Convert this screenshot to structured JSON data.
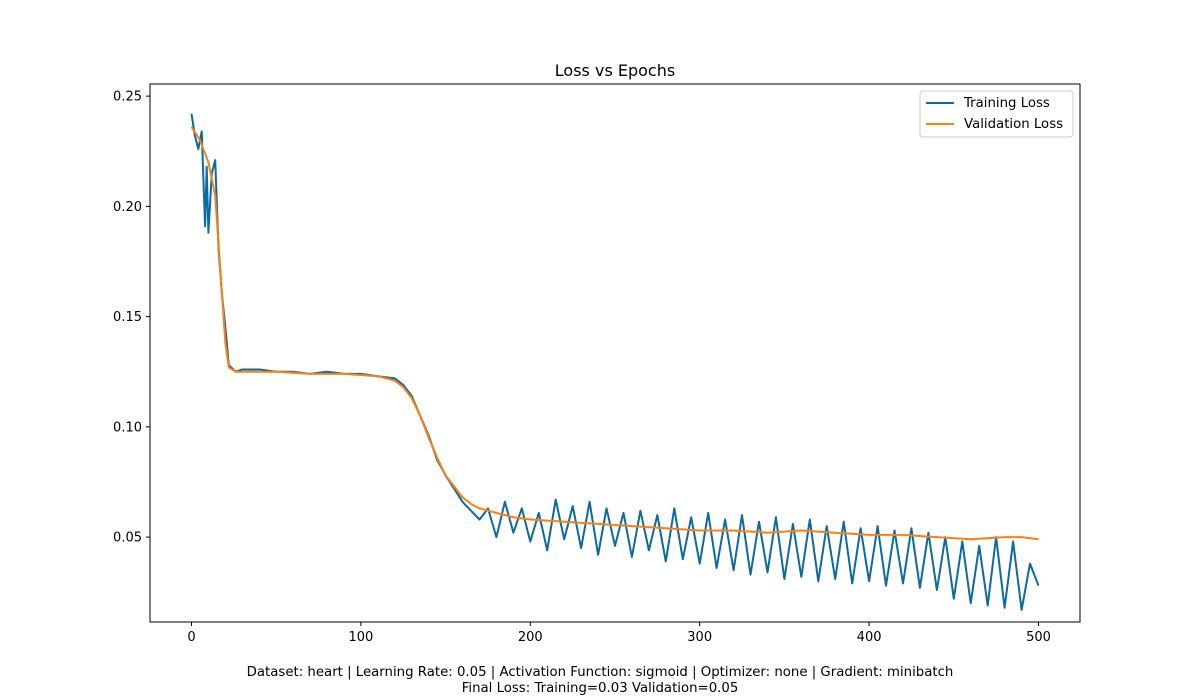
{
  "chart_data": {
    "type": "line",
    "title": "Loss vs Epochs",
    "xlabel": "",
    "ylabel": "",
    "xlim": [
      -24.5,
      524.5
    ],
    "ylim": [
      0.0115,
      0.2555
    ],
    "x_ticks": [
      0,
      100,
      200,
      300,
      400,
      500
    ],
    "y_ticks": [
      0.05,
      0.1,
      0.15,
      0.2,
      0.25
    ],
    "y_tick_labels": [
      "0.05",
      "0.10",
      "0.15",
      "0.20",
      "0.25"
    ],
    "grid": false,
    "legend_position": "top-right",
    "series": [
      {
        "name": "Training Loss",
        "color": "#0a6aa1",
        "x": [
          0,
          2,
          4,
          6,
          8,
          9,
          10,
          12,
          14,
          16,
          18,
          20,
          22,
          26,
          30,
          40,
          50,
          60,
          70,
          80,
          90,
          100,
          110,
          120,
          125,
          130,
          135,
          140,
          145,
          150,
          155,
          160,
          165,
          170,
          175,
          180,
          185,
          190,
          195,
          200,
          205,
          210,
          215,
          220,
          225,
          230,
          235,
          240,
          245,
          250,
          255,
          260,
          265,
          270,
          275,
          280,
          285,
          290,
          295,
          300,
          305,
          310,
          315,
          320,
          325,
          330,
          335,
          340,
          345,
          350,
          355,
          360,
          365,
          370,
          375,
          380,
          385,
          390,
          395,
          400,
          405,
          410,
          415,
          420,
          425,
          430,
          435,
          440,
          445,
          450,
          455,
          460,
          465,
          470,
          475,
          480,
          485,
          490,
          495,
          500
        ],
        "values": [
          0.242,
          0.232,
          0.226,
          0.234,
          0.191,
          0.218,
          0.188,
          0.215,
          0.221,
          0.18,
          0.16,
          0.145,
          0.128,
          0.125,
          0.126,
          0.126,
          0.125,
          0.125,
          0.124,
          0.125,
          0.124,
          0.124,
          0.123,
          0.122,
          0.119,
          0.114,
          0.105,
          0.096,
          0.085,
          0.078,
          0.072,
          0.066,
          0.062,
          0.058,
          0.063,
          0.05,
          0.066,
          0.052,
          0.063,
          0.048,
          0.061,
          0.044,
          0.067,
          0.049,
          0.064,
          0.045,
          0.066,
          0.042,
          0.063,
          0.046,
          0.061,
          0.041,
          0.062,
          0.044,
          0.06,
          0.039,
          0.063,
          0.04,
          0.059,
          0.038,
          0.061,
          0.036,
          0.058,
          0.035,
          0.06,
          0.033,
          0.057,
          0.034,
          0.059,
          0.031,
          0.056,
          0.032,
          0.058,
          0.03,
          0.055,
          0.031,
          0.057,
          0.029,
          0.054,
          0.03,
          0.055,
          0.028,
          0.053,
          0.029,
          0.054,
          0.027,
          0.052,
          0.026,
          0.05,
          0.022,
          0.048,
          0.02,
          0.046,
          0.019,
          0.05,
          0.018,
          0.048,
          0.017,
          0.038,
          0.028
        ]
      },
      {
        "name": "Validation Loss",
        "color": "#ff7f0e",
        "x": [
          0,
          5,
          10,
          14,
          18,
          20,
          22,
          26,
          30,
          50,
          70,
          90,
          110,
          120,
          125,
          130,
          135,
          140,
          145,
          150,
          155,
          160,
          165,
          170,
          180,
          190,
          200,
          220,
          240,
          260,
          280,
          300,
          320,
          340,
          360,
          380,
          400,
          420,
          440,
          460,
          480,
          490,
          500
        ],
        "values": [
          0.236,
          0.23,
          0.22,
          0.205,
          0.16,
          0.138,
          0.127,
          0.125,
          0.125,
          0.125,
          0.124,
          0.124,
          0.123,
          0.121,
          0.118,
          0.113,
          0.105,
          0.095,
          0.086,
          0.078,
          0.073,
          0.068,
          0.065,
          0.063,
          0.061,
          0.059,
          0.058,
          0.057,
          0.056,
          0.055,
          0.054,
          0.053,
          0.053,
          0.052,
          0.053,
          0.052,
          0.051,
          0.051,
          0.05,
          0.049,
          0.05,
          0.05,
          0.049
        ]
      }
    ]
  },
  "caption": {
    "line1": "Dataset: heart | Learning Rate: 0.05 | Activation Function: sigmoid | Optimizer: none | Gradient: minibatch",
    "line2": "Final Loss: Training=0.03 Validation=0.05"
  }
}
